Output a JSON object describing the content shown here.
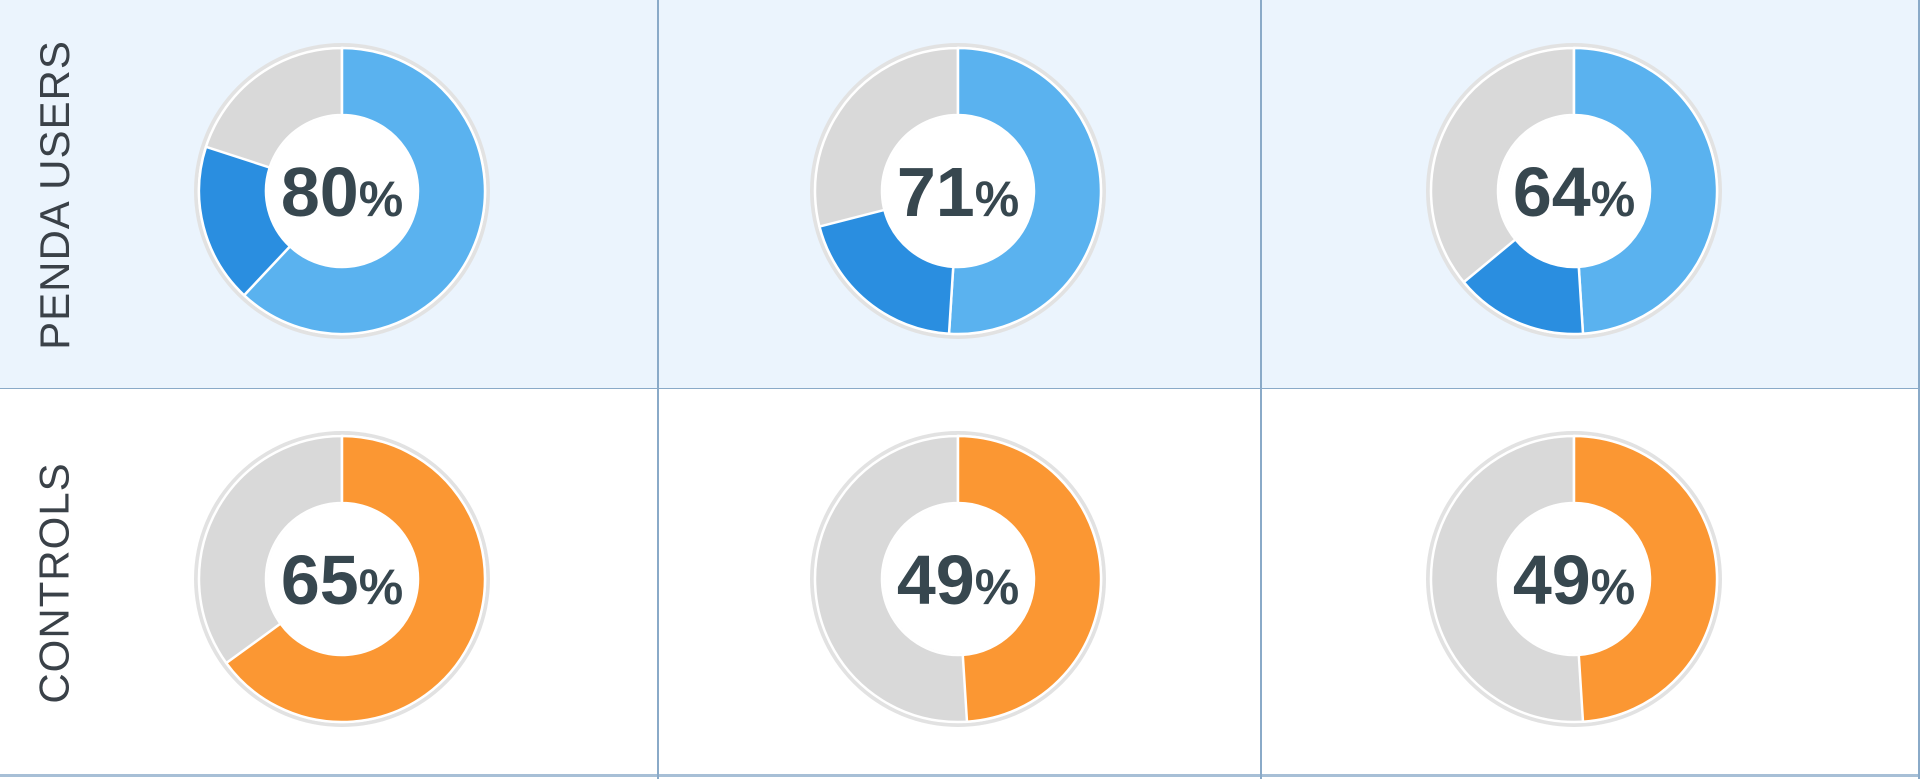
{
  "chart_data": {
    "type": "pie",
    "rows": [
      {
        "label": "PENDA USERS",
        "theme": "blue",
        "charts": [
          {
            "value_label": "80%",
            "total": 80,
            "segments": [
              {
                "value": 62
              },
              {
                "value": 18
              }
            ]
          },
          {
            "value_label": "71%",
            "total": 71,
            "segments": [
              {
                "value": 51
              },
              {
                "value": 20
              }
            ]
          },
          {
            "value_label": "64%",
            "total": 64,
            "segments": [
              {
                "value": 49
              },
              {
                "value": 15
              }
            ]
          }
        ]
      },
      {
        "label": "CONTROLS",
        "theme": "orange",
        "charts": [
          {
            "value_label": "65%",
            "total": 65,
            "segments": [
              {
                "value": 65
              }
            ]
          },
          {
            "value_label": "49%",
            "total": 49,
            "segments": [
              {
                "value": 49
              }
            ]
          },
          {
            "value_label": "49%",
            "total": 49,
            "segments": [
              {
                "value": 49
              }
            ]
          }
        ]
      }
    ]
  },
  "colors": {
    "blue_light": "#5ab2ef",
    "blue_dark": "#2a8ee0",
    "orange": "#fb9733",
    "track": "#d9d9d9",
    "ring_outline": "#e2e2e2",
    "text": "#37474f"
  }
}
